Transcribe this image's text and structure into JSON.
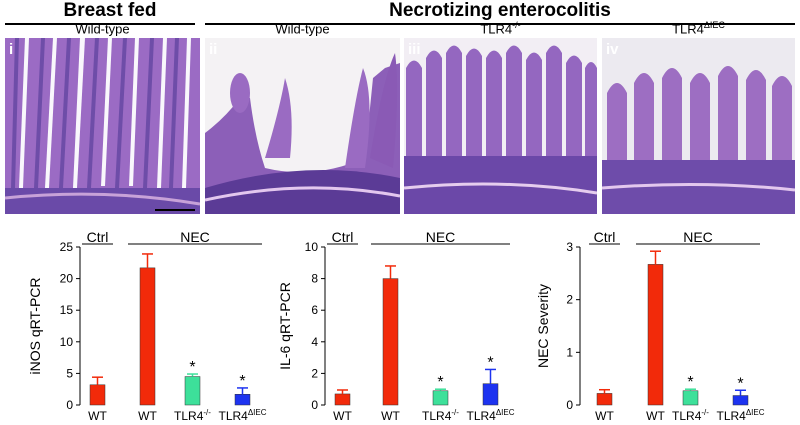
{
  "header": {
    "left": "Breast fed",
    "right": "Necrotizing enterocolitis"
  },
  "panels": [
    {
      "numeral": "i",
      "genotype": "Wild-type",
      "sup": ""
    },
    {
      "numeral": "ii",
      "genotype": "Wild-type",
      "sup": ""
    },
    {
      "numeral": "iii",
      "genotype": "TLR4",
      "sup": "-/-"
    },
    {
      "numeral": "iv",
      "genotype": "TLR4",
      "sup": "ΔIEC"
    }
  ],
  "colors": {
    "red": "#f22a0a",
    "green": "#3de09a",
    "blue": "#1d33f0",
    "tissue_dark": "#5a3f9e",
    "tissue_light": "#b07ac8"
  },
  "chart_data": [
    {
      "type": "bar",
      "ylabel": "iNOS qRT-PCR",
      "ylim": [
        0,
        25
      ],
      "yticks": [
        "0",
        "5",
        "10",
        "15",
        "20",
        "25"
      ],
      "groups": [
        "Ctrl",
        "NEC"
      ],
      "categories": [
        {
          "main": "WT",
          "sup": ""
        },
        {
          "main": "WT",
          "sup": ""
        },
        {
          "main": "TLR4",
          "sup": "-/-"
        },
        {
          "main": "TLR4",
          "sup": "ΔIEC"
        }
      ],
      "values": [
        3.2,
        21.7,
        4.5,
        1.7
      ],
      "errors": [
        1.2,
        2.2,
        0.4,
        1.0
      ],
      "significant": [
        "",
        "",
        "*",
        "*"
      ]
    },
    {
      "type": "bar",
      "ylabel": "IL-6 qRT-PCR",
      "ylim": [
        0,
        10
      ],
      "yticks": [
        "0",
        "2",
        "4",
        "6",
        "8",
        "10"
      ],
      "groups": [
        "Ctrl",
        "NEC"
      ],
      "categories": [
        {
          "main": "WT",
          "sup": ""
        },
        {
          "main": "WT",
          "sup": ""
        },
        {
          "main": "TLR4",
          "sup": "-/-"
        },
        {
          "main": "TLR4",
          "sup": "ΔIEC"
        }
      ],
      "values": [
        0.7,
        8.0,
        0.9,
        1.35
      ],
      "errors": [
        0.25,
        0.8,
        0.1,
        0.9
      ],
      "significant": [
        "",
        "",
        "*",
        "*"
      ]
    },
    {
      "type": "bar",
      "ylabel": "NEC Severity",
      "ylim": [
        0,
        3
      ],
      "yticks": [
        "0",
        "1",
        "2",
        "3"
      ],
      "groups": [
        "Ctrl",
        "NEC"
      ],
      "categories": [
        {
          "main": "WT",
          "sup": ""
        },
        {
          "main": "WT",
          "sup": ""
        },
        {
          "main": "TLR4",
          "sup": "-/-"
        },
        {
          "main": "TLR4",
          "sup": "ΔIEC"
        }
      ],
      "values": [
        0.22,
        2.67,
        0.27,
        0.18
      ],
      "errors": [
        0.07,
        0.25,
        0.03,
        0.1
      ],
      "significant": [
        "",
        "",
        "*",
        "*"
      ]
    }
  ]
}
